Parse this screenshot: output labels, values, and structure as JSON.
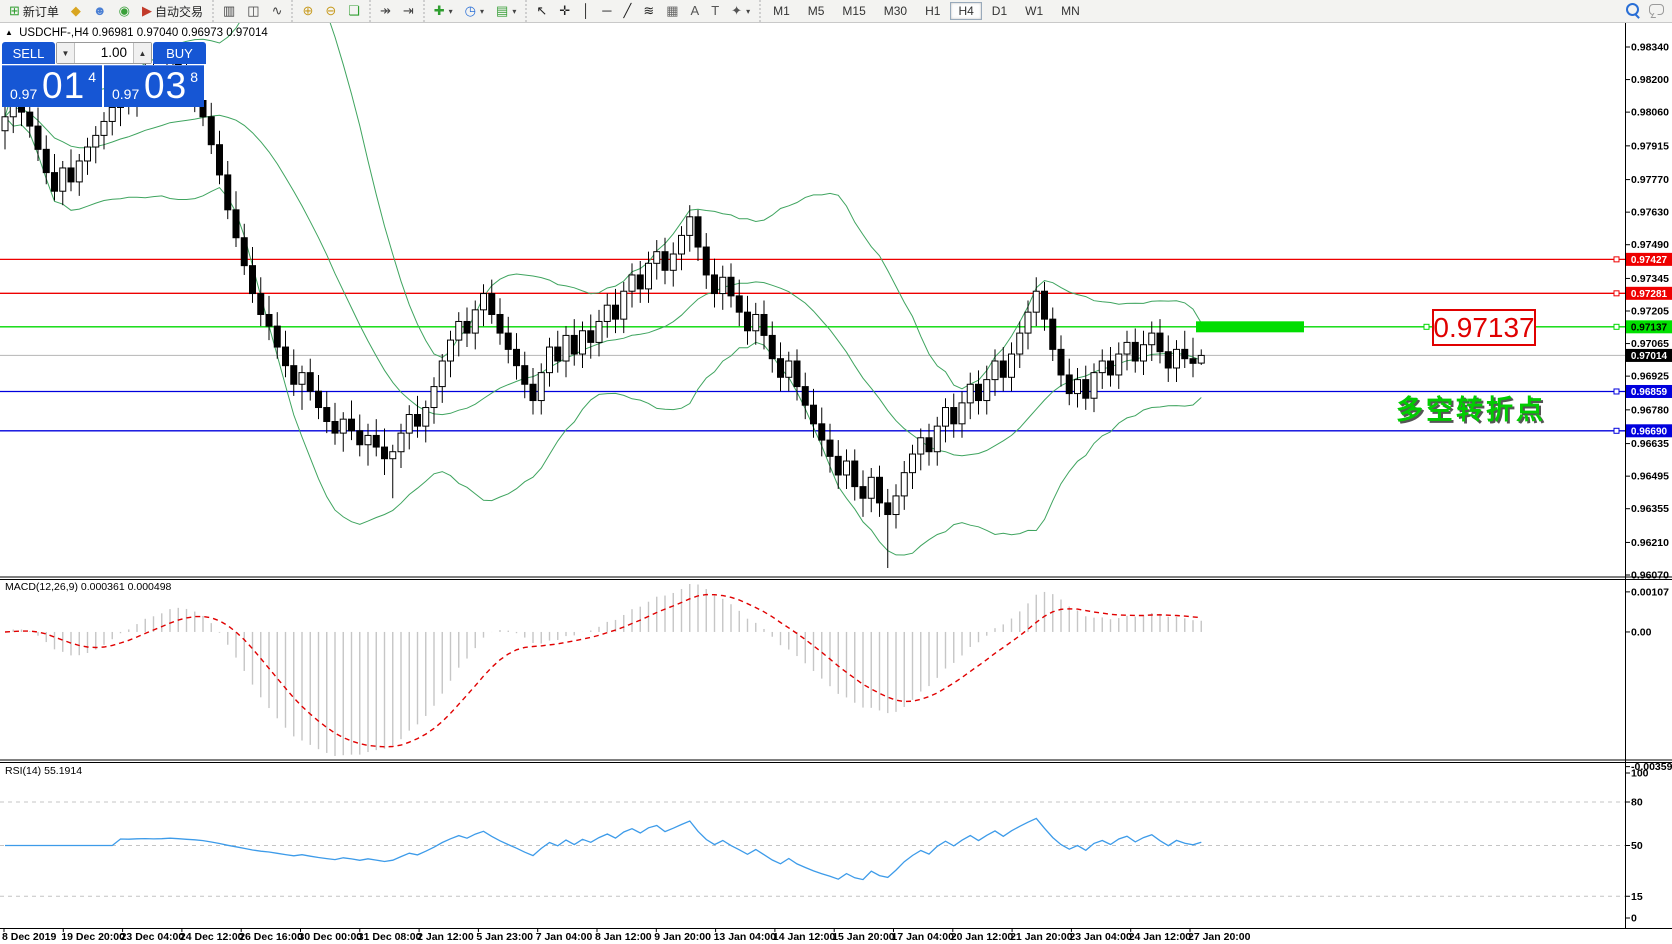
{
  "toolbar": {
    "groups": [
      {
        "items": [
          {
            "name": "new-order-button",
            "glyph": "⊞",
            "color": "#2f9e2f",
            "label": "新订单"
          },
          {
            "name": "indicators-diamond-button",
            "glyph": "◆",
            "color": "#d9a520"
          },
          {
            "name": "community-button",
            "glyph": "☻",
            "color": "#4a7fd4"
          },
          {
            "name": "signals-button",
            "glyph": "◉",
            "color": "#3aa03a"
          },
          {
            "name": "autotrading-button",
            "glyph": "▶",
            "color": "#c23a2a",
            "label": "自动交易"
          }
        ]
      },
      {
        "items": [
          {
            "name": "bar-chart-button",
            "glyph": "▥",
            "color": "#444"
          },
          {
            "name": "candlestick-chart-button",
            "glyph": "◫",
            "color": "#444"
          },
          {
            "name": "line-chart-button",
            "glyph": "∿",
            "color": "#444"
          }
        ]
      },
      {
        "items": [
          {
            "name": "zoom-in-button",
            "glyph": "⊕",
            "color": "#c79a1e"
          },
          {
            "name": "zoom-out-button",
            "glyph": "⊖",
            "color": "#c79a1e"
          },
          {
            "name": "tile-windows-button",
            "glyph": "❏",
            "color": "#2f9e2f"
          }
        ]
      },
      {
        "items": [
          {
            "name": "auto-scroll-button",
            "glyph": "↠",
            "color": "#444"
          },
          {
            "name": "chart-shift-button",
            "glyph": "⇥",
            "color": "#444"
          }
        ]
      },
      {
        "items": [
          {
            "name": "add-indicator-dropdown",
            "glyph": "✚",
            "color": "#2f9e2f",
            "caret": true
          },
          {
            "name": "periods-dropdown",
            "glyph": "◷",
            "color": "#2a6fd6",
            "caret": true
          },
          {
            "name": "templates-dropdown",
            "glyph": "▤",
            "color": "#3aa03a",
            "caret": true
          }
        ]
      },
      {
        "items": [
          {
            "name": "cursor-button",
            "glyph": "↖",
            "color": "#222"
          },
          {
            "name": "crosshair-button",
            "glyph": "✛",
            "color": "#222"
          },
          {
            "name": "vertical-line-button",
            "glyph": "│",
            "color": "#222"
          },
          {
            "name": "horizontal-line-button",
            "glyph": "─",
            "color": "#222"
          },
          {
            "name": "trendline-button",
            "glyph": "╱",
            "color": "#222"
          },
          {
            "name": "fibonacci-button",
            "glyph": "≋",
            "color": "#222"
          },
          {
            "name": "grid-button",
            "glyph": "▦",
            "color": "#666"
          },
          {
            "name": "text-button",
            "glyph": "A",
            "color": "#555"
          },
          {
            "name": "text-label-button",
            "glyph": "T",
            "color": "#555"
          },
          {
            "name": "shapes-dropdown",
            "glyph": "✦",
            "color": "#555",
            "caret": true
          }
        ]
      }
    ],
    "timeframes": {
      "items": [
        "M1",
        "M5",
        "M15",
        "M30",
        "H1",
        "H4",
        "D1",
        "W1",
        "MN"
      ],
      "active": "H4"
    }
  },
  "quote": {
    "symbol": "USDCHF-,H4",
    "ohlc": "0.96981 0.97040 0.96973 0.97014"
  },
  "trade_panel": {
    "sell_label": "SELL",
    "buy_label": "BUY",
    "volume": "1.00",
    "sell_price": {
      "base": "0.97",
      "big": "01",
      "sup": "4"
    },
    "buy_price": {
      "base": "0.97",
      "big": "03",
      "sup": "8"
    }
  },
  "chart_data": {
    "type": "candlestick",
    "symbol": "USDCHF-",
    "timeframe": "H4",
    "title": "USDCHF-,H4 0.96981 0.97040 0.96973 0.97014",
    "y_range": {
      "top": 0.9834,
      "bottom": 0.9607
    },
    "y_ticks": [
      "0.98340",
      "0.98200",
      "0.98060",
      "0.97915",
      "0.97770",
      "0.97630",
      "0.97490",
      "0.97345",
      "0.97205",
      "0.97065",
      "0.96925",
      "0.96780",
      "0.96635",
      "0.96495",
      "0.96355",
      "0.96210",
      "0.96070"
    ],
    "x_labels": [
      "8 Dec 2019",
      "19 Dec 20:00",
      "23 Dec 04:00",
      "24 Dec 12:00",
      "26 Dec 16:00",
      "30 Dec 00:00",
      "31 Dec 08:00",
      "2 Jan 12:00",
      "5 Jan 23:00",
      "7 Jan 04:00",
      "8 Jan 12:00",
      "9 Jan 20:00",
      "13 Jan 04:00",
      "14 Jan 12:00",
      "15 Jan 20:00",
      "17 Jan 04:00",
      "20 Jan 12:00",
      "21 Jan 20:00",
      "23 Jan 04:00",
      "24 Jan 12:00",
      "27 Jan 20:00"
    ],
    "levels": [
      {
        "price": 0.97427,
        "label": "0.97427",
        "color": "#ee0000",
        "badge_bg": "#ee0000",
        "badge_text": "#ffffff"
      },
      {
        "price": 0.97281,
        "label": "0.97281",
        "color": "#ee0000",
        "badge_bg": "#ee0000",
        "badge_text": "#ffffff"
      },
      {
        "price": 0.97137,
        "label": "0.97137",
        "color": "#00d800",
        "badge_bg": "#00e000",
        "badge_text": "#000000"
      },
      {
        "price": 0.96859,
        "label": "0.96859",
        "color": "#0000dd",
        "badge_bg": "#0000dd",
        "badge_text": "#ffffff"
      },
      {
        "price": 0.9669,
        "label": "0.96690",
        "color": "#0000dd",
        "badge_bg": "#0000dd",
        "badge_text": "#ffffff"
      }
    ],
    "current_price": {
      "value": 0.97014,
      "label": "0.97014",
      "line_color": "#b4b4b4",
      "badge_bg": "#000000",
      "badge_text": "#ffffff"
    },
    "indicators": {
      "bollinger": {
        "period": 20,
        "deviation": 2,
        "color": "#3fa45f"
      },
      "macd": {
        "label": "MACD(12,26,9)",
        "fast": 12,
        "slow": 26,
        "signal": 9,
        "value_main": "0.000361",
        "value_signal": "0.000498",
        "scale": [
          "0.00107",
          "0.00",
          "-0.003595"
        ],
        "histogram_color": "#c6c6c6",
        "signal_color": "#e00000"
      },
      "rsi": {
        "label": "RSI(14)",
        "period": 14,
        "value": "55.1914",
        "levels": [
          80,
          50,
          15
        ],
        "scale": [
          "100",
          "80",
          "50",
          "15",
          "0"
        ],
        "color": "#3d9be9"
      }
    },
    "annotations": {
      "price_label": {
        "text": "0.97137",
        "color": "#e00000"
      },
      "note": {
        "text": "多空转折点",
        "color": "#00cc00"
      },
      "highlight": {
        "price": 0.97137,
        "color": "#00dd00"
      }
    },
    "candles": [
      [
        0.9798,
        0.9812,
        0.979,
        0.9804
      ],
      [
        0.9804,
        0.9818,
        0.9797,
        0.9812
      ],
      [
        0.9812,
        0.982,
        0.98,
        0.9806
      ],
      [
        0.9806,
        0.9814,
        0.9795,
        0.98
      ],
      [
        0.98,
        0.9808,
        0.9785,
        0.979
      ],
      [
        0.979,
        0.9796,
        0.9775,
        0.978
      ],
      [
        0.978,
        0.9788,
        0.9768,
        0.9772
      ],
      [
        0.9772,
        0.9785,
        0.9766,
        0.9782
      ],
      [
        0.9782,
        0.979,
        0.9772,
        0.9776
      ],
      [
        0.9776,
        0.9788,
        0.977,
        0.9785
      ],
      [
        0.9785,
        0.9795,
        0.9779,
        0.9791
      ],
      [
        0.9791,
        0.98,
        0.9784,
        0.9796
      ],
      [
        0.9796,
        0.9806,
        0.979,
        0.9802
      ],
      [
        0.9802,
        0.9812,
        0.9796,
        0.9808
      ],
      [
        0.9808,
        0.9818,
        0.98,
        0.9813
      ],
      [
        0.9813,
        0.982,
        0.9805,
        0.981
      ],
      [
        0.981,
        0.9822,
        0.9804,
        0.9818
      ],
      [
        0.9818,
        0.9828,
        0.9812,
        0.9822
      ],
      [
        0.9822,
        0.983,
        0.9814,
        0.9817
      ],
      [
        0.9817,
        0.9826,
        0.981,
        0.9821
      ],
      [
        0.9821,
        0.9833,
        0.9815,
        0.9828
      ],
      [
        0.9828,
        0.9835,
        0.9818,
        0.9822
      ],
      [
        0.9822,
        0.983,
        0.9812,
        0.9816
      ],
      [
        0.9816,
        0.9824,
        0.9806,
        0.9811
      ],
      [
        0.9811,
        0.9818,
        0.98,
        0.9804
      ],
      [
        0.9804,
        0.981,
        0.9788,
        0.9792
      ],
      [
        0.9792,
        0.9798,
        0.9775,
        0.9779
      ],
      [
        0.9779,
        0.9785,
        0.976,
        0.9764
      ],
      [
        0.9764,
        0.9772,
        0.9748,
        0.9752
      ],
      [
        0.9752,
        0.9758,
        0.9736,
        0.974
      ],
      [
        0.974,
        0.9748,
        0.9724,
        0.9728
      ],
      [
        0.9728,
        0.9735,
        0.9714,
        0.9719
      ],
      [
        0.9719,
        0.9727,
        0.9708,
        0.9714
      ],
      [
        0.9714,
        0.972,
        0.97,
        0.9705
      ],
      [
        0.9705,
        0.9712,
        0.9692,
        0.9697
      ],
      [
        0.9697,
        0.9704,
        0.9684,
        0.9689
      ],
      [
        0.9689,
        0.9697,
        0.9678,
        0.9694
      ],
      [
        0.9694,
        0.97,
        0.9682,
        0.9686
      ],
      [
        0.9686,
        0.9693,
        0.9674,
        0.9679
      ],
      [
        0.9679,
        0.9686,
        0.9668,
        0.9673
      ],
      [
        0.9673,
        0.9681,
        0.9663,
        0.9668
      ],
      [
        0.9668,
        0.9677,
        0.966,
        0.9674
      ],
      [
        0.9674,
        0.9682,
        0.9665,
        0.9669
      ],
      [
        0.9669,
        0.9676,
        0.9658,
        0.9663
      ],
      [
        0.9663,
        0.9672,
        0.9654,
        0.9667
      ],
      [
        0.9667,
        0.9674,
        0.9658,
        0.9662
      ],
      [
        0.9662,
        0.967,
        0.965,
        0.9657
      ],
      [
        0.9657,
        0.9663,
        0.964,
        0.966
      ],
      [
        0.966,
        0.9672,
        0.9653,
        0.9668
      ],
      [
        0.9668,
        0.968,
        0.9661,
        0.9676
      ],
      [
        0.9676,
        0.9684,
        0.9666,
        0.9671
      ],
      [
        0.9671,
        0.9682,
        0.9664,
        0.9679
      ],
      [
        0.9679,
        0.9692,
        0.9672,
        0.9688
      ],
      [
        0.9688,
        0.9702,
        0.9681,
        0.9699
      ],
      [
        0.9699,
        0.9712,
        0.9692,
        0.9708
      ],
      [
        0.9708,
        0.972,
        0.9701,
        0.9716
      ],
      [
        0.9716,
        0.9722,
        0.9705,
        0.9711
      ],
      [
        0.9711,
        0.9725,
        0.9704,
        0.9721
      ],
      [
        0.9721,
        0.9732,
        0.9714,
        0.9728
      ],
      [
        0.9728,
        0.9734,
        0.9715,
        0.9719
      ],
      [
        0.9719,
        0.9726,
        0.9706,
        0.9711
      ],
      [
        0.9711,
        0.9718,
        0.9698,
        0.9704
      ],
      [
        0.9704,
        0.9711,
        0.9691,
        0.9697
      ],
      [
        0.9697,
        0.9703,
        0.9683,
        0.9689
      ],
      [
        0.9689,
        0.9696,
        0.9676,
        0.9682
      ],
      [
        0.9682,
        0.9698,
        0.9676,
        0.9694
      ],
      [
        0.9694,
        0.9709,
        0.9688,
        0.9705
      ],
      [
        0.9705,
        0.9712,
        0.9694,
        0.9699
      ],
      [
        0.9699,
        0.9714,
        0.9692,
        0.971
      ],
      [
        0.971,
        0.9717,
        0.9697,
        0.9702
      ],
      [
        0.9702,
        0.9716,
        0.9696,
        0.9712
      ],
      [
        0.9712,
        0.9719,
        0.97,
        0.9707
      ],
      [
        0.9707,
        0.9721,
        0.9701,
        0.9716
      ],
      [
        0.9716,
        0.9728,
        0.9709,
        0.9723
      ],
      [
        0.9723,
        0.973,
        0.9711,
        0.9717
      ],
      [
        0.9717,
        0.9733,
        0.9711,
        0.9729
      ],
      [
        0.9729,
        0.9741,
        0.9722,
        0.9736
      ],
      [
        0.9736,
        0.9742,
        0.9724,
        0.973
      ],
      [
        0.973,
        0.9746,
        0.9724,
        0.9741
      ],
      [
        0.9741,
        0.9751,
        0.9734,
        0.9746
      ],
      [
        0.9746,
        0.9752,
        0.9732,
        0.9738
      ],
      [
        0.9738,
        0.975,
        0.9731,
        0.9745
      ],
      [
        0.9745,
        0.9757,
        0.9738,
        0.9753
      ],
      [
        0.9753,
        0.9766,
        0.9746,
        0.9761
      ],
      [
        0.9761,
        0.9764,
        0.9742,
        0.9748
      ],
      [
        0.9748,
        0.9754,
        0.973,
        0.9736
      ],
      [
        0.9736,
        0.9743,
        0.9722,
        0.9728
      ],
      [
        0.9728,
        0.974,
        0.9721,
        0.9735
      ],
      [
        0.9735,
        0.9741,
        0.9722,
        0.9727
      ],
      [
        0.9727,
        0.9734,
        0.9714,
        0.972
      ],
      [
        0.972,
        0.9727,
        0.9706,
        0.9712
      ],
      [
        0.9712,
        0.9724,
        0.9706,
        0.9719
      ],
      [
        0.9719,
        0.9725,
        0.9704,
        0.971
      ],
      [
        0.971,
        0.9716,
        0.9694,
        0.97
      ],
      [
        0.97,
        0.9707,
        0.9686,
        0.9692
      ],
      [
        0.9692,
        0.9703,
        0.9686,
        0.9699
      ],
      [
        0.9699,
        0.9704,
        0.9682,
        0.9688
      ],
      [
        0.9688,
        0.9694,
        0.9674,
        0.968
      ],
      [
        0.968,
        0.9687,
        0.9666,
        0.9672
      ],
      [
        0.9672,
        0.9679,
        0.9658,
        0.9665
      ],
      [
        0.9665,
        0.9672,
        0.9651,
        0.9658
      ],
      [
        0.9658,
        0.9665,
        0.9644,
        0.965
      ],
      [
        0.965,
        0.9661,
        0.9644,
        0.9656
      ],
      [
        0.9656,
        0.9661,
        0.9639,
        0.9645
      ],
      [
        0.9645,
        0.9652,
        0.9632,
        0.964
      ],
      [
        0.964,
        0.9653,
        0.9634,
        0.9649
      ],
      [
        0.9649,
        0.9654,
        0.9632,
        0.9638
      ],
      [
        0.9638,
        0.9644,
        0.961,
        0.9633
      ],
      [
        0.9633,
        0.9646,
        0.9627,
        0.9641
      ],
      [
        0.9641,
        0.9656,
        0.9635,
        0.9651
      ],
      [
        0.9651,
        0.9663,
        0.9644,
        0.9659
      ],
      [
        0.9659,
        0.967,
        0.9652,
        0.9666
      ],
      [
        0.9666,
        0.9672,
        0.9654,
        0.966
      ],
      [
        0.966,
        0.9675,
        0.9654,
        0.9671
      ],
      [
        0.9671,
        0.9683,
        0.9664,
        0.9679
      ],
      [
        0.9679,
        0.9685,
        0.9666,
        0.9672
      ],
      [
        0.9672,
        0.9686,
        0.9666,
        0.9681
      ],
      [
        0.9681,
        0.9694,
        0.9674,
        0.9689
      ],
      [
        0.9689,
        0.9695,
        0.9676,
        0.9682
      ],
      [
        0.9682,
        0.9697,
        0.9676,
        0.9691
      ],
      [
        0.9691,
        0.9704,
        0.9684,
        0.9699
      ],
      [
        0.9699,
        0.9705,
        0.9686,
        0.9692
      ],
      [
        0.9692,
        0.9707,
        0.9686,
        0.9702
      ],
      [
        0.9702,
        0.9716,
        0.9696,
        0.9711
      ],
      [
        0.9711,
        0.9725,
        0.9704,
        0.972
      ],
      [
        0.972,
        0.9735,
        0.9714,
        0.9729
      ],
      [
        0.9729,
        0.9733,
        0.9712,
        0.9717
      ],
      [
        0.9717,
        0.9722,
        0.9699,
        0.9704
      ],
      [
        0.9704,
        0.971,
        0.9688,
        0.9693
      ],
      [
        0.9693,
        0.97,
        0.968,
        0.9685
      ],
      [
        0.9685,
        0.9696,
        0.9679,
        0.9691
      ],
      [
        0.9691,
        0.9697,
        0.9678,
        0.9683
      ],
      [
        0.9683,
        0.9698,
        0.9677,
        0.9694
      ],
      [
        0.9694,
        0.9704,
        0.9687,
        0.9699
      ],
      [
        0.9699,
        0.9705,
        0.9688,
        0.9693
      ],
      [
        0.9693,
        0.9707,
        0.9687,
        0.9702
      ],
      [
        0.9702,
        0.9712,
        0.9695,
        0.9707
      ],
      [
        0.9707,
        0.9713,
        0.9694,
        0.9699
      ],
      [
        0.9699,
        0.9712,
        0.9693,
        0.9706
      ],
      [
        0.9706,
        0.9716,
        0.9699,
        0.9711
      ],
      [
        0.9711,
        0.9717,
        0.9698,
        0.9703
      ],
      [
        0.9703,
        0.971,
        0.969,
        0.9696
      ],
      [
        0.9696,
        0.9708,
        0.969,
        0.9704
      ],
      [
        0.9704,
        0.9712,
        0.9696,
        0.97
      ],
      [
        0.97,
        0.9709,
        0.9692,
        0.9698
      ],
      [
        0.96981,
        0.9704,
        0.96973,
        0.97014
      ]
    ]
  }
}
